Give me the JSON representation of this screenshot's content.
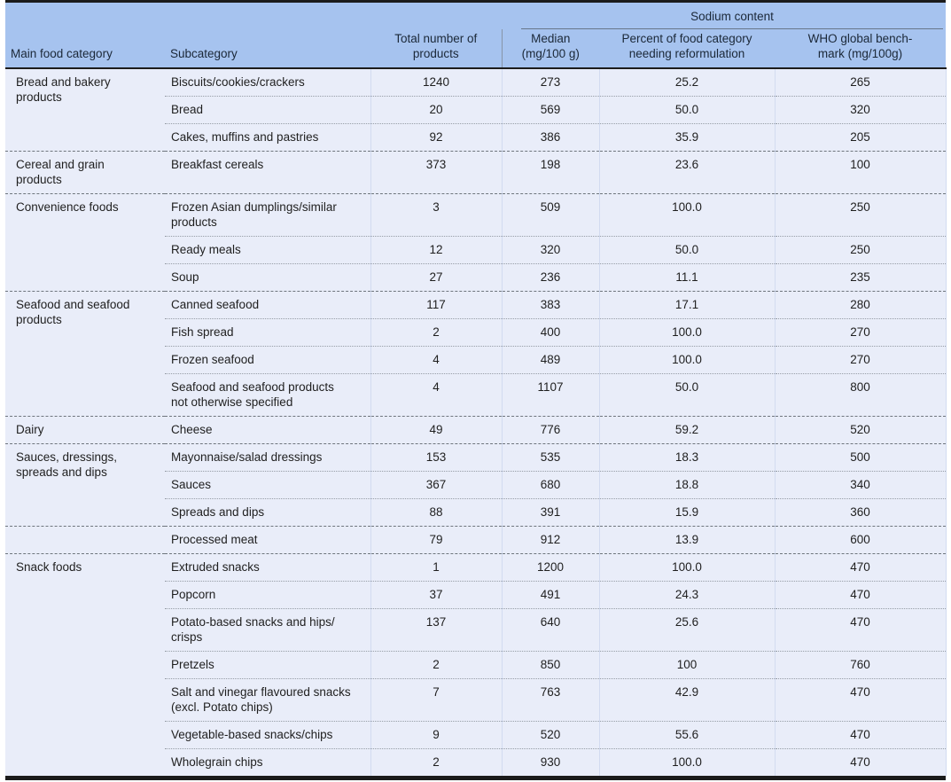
{
  "table": {
    "header": {
      "group": "Sodium content",
      "main": "Main food category",
      "sub": "Subcategory",
      "total": "Total number of\nproducts",
      "median": "Median\n(mg/100 g)",
      "percent": "Percent of food category\nneeding reformulation",
      "who": "WHO global bench-\nmark (mg/100g)"
    },
    "colors": {
      "header_background": "#a6c3ef",
      "body_background": "#e9edf9",
      "rule_dark": "#1b1b1b"
    },
    "groups": [
      {
        "category": "Bread and bakery\nproducts",
        "rows": [
          [
            "Biscuits/cookies/crackers",
            "1240",
            "273",
            "25.2",
            "265"
          ],
          [
            "Bread",
            "20",
            "569",
            "50.0",
            "320"
          ],
          [
            "Cakes, muffins and pastries",
            "92",
            "386",
            "35.9",
            "205"
          ]
        ]
      },
      {
        "category": "Cereal and grain\nproducts",
        "rows": [
          [
            "Breakfast cereals",
            "373",
            "198",
            "23.6",
            "100"
          ]
        ]
      },
      {
        "category": "Convenience foods",
        "rows": [
          [
            "Frozen Asian dumplings/similar\nproducts",
            "3",
            "509",
            "100.0",
            "250"
          ],
          [
            "Ready meals",
            "12",
            "320",
            "50.0",
            "250"
          ],
          [
            "Soup",
            "27",
            "236",
            "11.1",
            "235"
          ]
        ]
      },
      {
        "category": "Seafood and seafood\nproducts",
        "rows": [
          [
            "Canned seafood",
            "117",
            "383",
            "17.1",
            "280"
          ],
          [
            "Fish spread",
            "2",
            "400",
            "100.0",
            "270"
          ],
          [
            "Frozen seafood",
            "4",
            "489",
            "100.0",
            "270"
          ],
          [
            "Seafood and seafood products\nnot otherwise specified",
            "4",
            "1107",
            "50.0",
            "800"
          ]
        ]
      },
      {
        "category": "Dairy",
        "rows": [
          [
            "Cheese",
            "49",
            "776",
            "59.2",
            "520"
          ]
        ]
      },
      {
        "category": "Sauces, dressings,\nspreads and dips",
        "rows": [
          [
            "Mayonnaise/salad dressings",
            "153",
            "535",
            "18.3",
            "500"
          ],
          [
            "Sauces",
            "367",
            "680",
            "18.8",
            "340"
          ],
          [
            "Spreads and dips",
            "88",
            "391",
            "15.9",
            "360"
          ]
        ]
      },
      {
        "category": "",
        "rows": [
          [
            "Processed meat",
            "79",
            "912",
            "13.9",
            "600"
          ]
        ]
      },
      {
        "category": "Snack foods",
        "rows": [
          [
            "Extruded snacks",
            "1",
            "1200",
            "100.0",
            "470"
          ],
          [
            "Popcorn",
            "37",
            "491",
            "24.3",
            "470"
          ],
          [
            "Potato-based snacks and hips/\ncrisps",
            "137",
            "640",
            "25.6",
            "470"
          ],
          [
            "Pretzels",
            "2",
            "850",
            "100",
            "760"
          ],
          [
            "Salt and vinegar flavoured snacks\n(excl. Potato chips)",
            "7",
            "763",
            "42.9",
            "470"
          ],
          [
            "Vegetable-based snacks/chips",
            "9",
            "520",
            "55.6",
            "470"
          ],
          [
            "Wholegrain chips",
            "2",
            "930",
            "100.0",
            "470"
          ]
        ]
      }
    ]
  }
}
